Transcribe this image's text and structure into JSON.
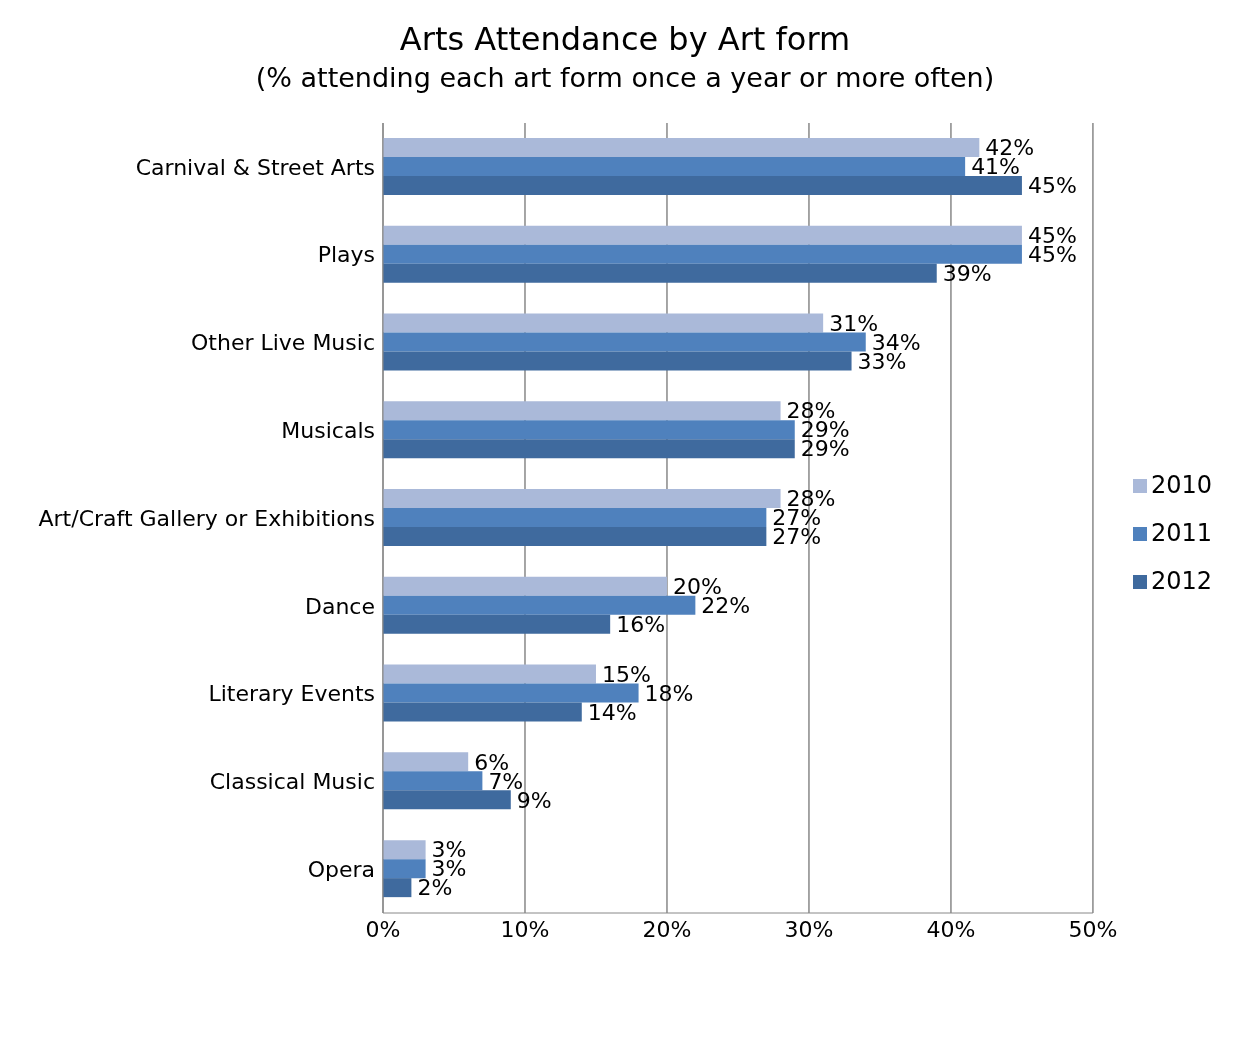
{
  "chart_data": {
    "type": "bar",
    "orientation": "horizontal",
    "title": "Arts Attendance by Art form",
    "subtitle": "(% attending each art form once a year or more often)",
    "categories": [
      "Carnival & Street Arts",
      "Plays",
      "Other Live Music",
      "Musicals",
      "Art/Craft Gallery or Exhibitions",
      "Dance",
      "Literary Events",
      "Classical Music",
      "Opera"
    ],
    "series": [
      {
        "name": "2010",
        "color": "#aab9d9",
        "values": [
          42,
          45,
          31,
          28,
          28,
          20,
          15,
          6,
          3
        ],
        "value_labels": [
          "42%",
          "45%",
          "31%",
          "28%",
          "28%",
          "20%",
          "15%",
          "6%",
          "3%"
        ]
      },
      {
        "name": "2011",
        "color": "#4f81bd",
        "values": [
          41,
          45,
          34,
          29,
          27,
          22,
          18,
          7,
          3
        ],
        "value_labels": [
          "41%",
          "45%",
          "34%",
          "29%",
          "27%",
          "22%",
          "18%",
          "7%",
          "3%"
        ]
      },
      {
        "name": "2012",
        "color": "#3f6a9e",
        "values": [
          45,
          39,
          33,
          29,
          27,
          16,
          14,
          9,
          2
        ],
        "value_labels": [
          "45%",
          "39%",
          "33%",
          "29%",
          "27%",
          "16%",
          "14%",
          "9%",
          "2%"
        ]
      }
    ],
    "xlim": [
      0,
      50
    ],
    "xticks": [
      {
        "value": 0,
        "label": "0%"
      },
      {
        "value": 10,
        "label": "10%"
      },
      {
        "value": 20,
        "label": "20%"
      },
      {
        "value": 30,
        "label": "30%"
      },
      {
        "value": 40,
        "label": "40%"
      },
      {
        "value": 50,
        "label": "50%"
      }
    ],
    "grid": "x",
    "legend": "right"
  }
}
